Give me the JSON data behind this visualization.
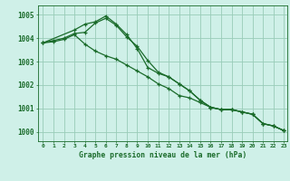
{
  "title": "Graphe pression niveau de la mer (hPa)",
  "bg_color": "#cff0e8",
  "grid_color": "#99ccb8",
  "line_color": "#1a6b2a",
  "xlim": [
    -0.5,
    23.3
  ],
  "ylim": [
    999.6,
    1005.4
  ],
  "yticks": [
    1000,
    1001,
    1002,
    1003,
    1004,
    1005
  ],
  "xticks": [
    0,
    1,
    2,
    3,
    4,
    5,
    6,
    7,
    8,
    9,
    10,
    11,
    12,
    13,
    14,
    15,
    16,
    17,
    18,
    19,
    20,
    21,
    22,
    23
  ],
  "series1_x": [
    0,
    1,
    2,
    3,
    4,
    5,
    6,
    7,
    8,
    9,
    10,
    11,
    12,
    13,
    14,
    15,
    16,
    17,
    18,
    19,
    20,
    21,
    22,
    23
  ],
  "series1_y": [
    1003.8,
    1003.9,
    1004.0,
    1004.2,
    1004.25,
    1004.65,
    1004.85,
    1004.55,
    1004.05,
    1003.65,
    1003.05,
    1002.55,
    1002.35,
    1002.05,
    1001.75,
    1001.35,
    1001.05,
    1000.95,
    1000.95,
    1000.85,
    1000.75,
    1000.35,
    1000.25,
    1000.05
  ],
  "series2_x": [
    0,
    1,
    2,
    3,
    4,
    5,
    6,
    7,
    8,
    9,
    10,
    11,
    12,
    13,
    14,
    15,
    16,
    17,
    18,
    19,
    20,
    21,
    22,
    23
  ],
  "series2_y": [
    1003.8,
    1003.85,
    1003.95,
    1004.15,
    1003.75,
    1003.45,
    1003.25,
    1003.1,
    1002.85,
    1002.6,
    1002.35,
    1002.05,
    1001.85,
    1001.55,
    1001.45,
    1001.25,
    1001.05,
    1000.95,
    1000.95,
    1000.85,
    1000.75,
    1000.35,
    1000.25,
    1000.05
  ],
  "series3_x": [
    0,
    3,
    4,
    5,
    6,
    7,
    8,
    9,
    10,
    11,
    12,
    13,
    14,
    15,
    16,
    17,
    18,
    19,
    20,
    21,
    22,
    23
  ],
  "series3_y": [
    1003.8,
    1004.35,
    1004.6,
    1004.7,
    1004.95,
    1004.6,
    1004.15,
    1003.55,
    1002.75,
    1002.5,
    1002.35,
    1002.05,
    1001.75,
    1001.35,
    1001.05,
    1000.95,
    1000.95,
    1000.85,
    1000.75,
    1000.35,
    1000.25,
    1000.05
  ]
}
